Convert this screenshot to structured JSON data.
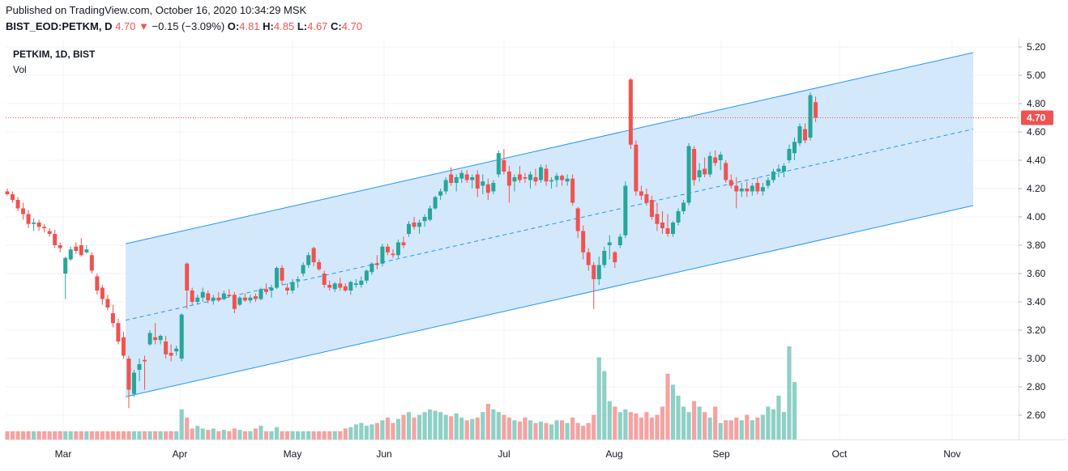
{
  "header": {
    "published": "Published on TradingView.com, October 16, 2020 10:34:29 MSK",
    "symbol_line": "BIST_EOD:PETKM, D",
    "last": "4.70",
    "arrow": "▼",
    "change": "−0.15 (−3.09%)",
    "o_label": "O:",
    "o_value": "4.81",
    "h_label": "H:",
    "h_value": "4.85",
    "l_label": "L:",
    "l_value": "4.67",
    "c_label": "C:",
    "c_value": "4.70"
  },
  "legend": {
    "symbol": "PETKIM, 1D, BIST",
    "volume": "Vol"
  },
  "chart_data": {
    "type": "candlestick",
    "price_axis": {
      "ticks": [
        "5.20",
        "5.00",
        "4.80",
        "4.60",
        "4.40",
        "4.20",
        "4.00",
        "3.80",
        "3.60",
        "3.40",
        "3.20",
        "3.00",
        "2.80",
        "2.60"
      ],
      "range": [
        2.44,
        5.24
      ]
    },
    "time_axis": {
      "ticks": [
        "Mar",
        "Apr",
        "May",
        "Jun",
        "Jul",
        "Aug",
        "Sep",
        "Oct",
        "Nov"
      ]
    },
    "last_price_label": "4.70",
    "colors": {
      "up": "#26a69a",
      "down": "#ef5350",
      "up_volume": "#8fd0c6",
      "down_volume": "#f4a3a2",
      "channel_line": "#2196f3",
      "channel_fill": "#cfe5fb"
    },
    "channel": {
      "upper": [
        [
          "Mar 19",
          3.81
        ],
        [
          "Oct 23",
          5.16
        ]
      ],
      "middle": [
        [
          "Mar 19",
          3.27
        ],
        [
          "Oct 23",
          4.62
        ]
      ],
      "lower": [
        [
          "Mar 19",
          2.73
        ],
        [
          "Oct 23",
          4.08
        ]
      ]
    },
    "candles": [
      [
        4.18,
        4.2,
        4.15,
        4.16
      ],
      [
        4.16,
        4.18,
        4.1,
        4.12
      ],
      [
        4.12,
        4.14,
        4.04,
        4.06
      ],
      [
        4.06,
        4.1,
        3.98,
        4.02
      ],
      [
        4.02,
        4.05,
        3.92,
        3.95
      ],
      [
        3.95,
        3.99,
        3.9,
        3.96
      ],
      [
        3.96,
        3.98,
        3.9,
        3.93
      ],
      [
        3.93,
        3.95,
        3.89,
        3.92
      ],
      [
        3.9,
        3.92,
        3.86,
        3.88
      ],
      [
        3.88,
        3.91,
        3.78,
        3.8
      ],
      [
        3.8,
        3.82,
        3.75,
        3.78
      ],
      [
        3.6,
        3.72,
        3.42,
        3.71
      ],
      [
        3.7,
        3.79,
        3.69,
        3.77
      ],
      [
        3.79,
        3.82,
        3.74,
        3.76
      ],
      [
        3.8,
        3.85,
        3.72,
        3.73
      ],
      [
        3.75,
        3.8,
        3.74,
        3.77
      ],
      [
        3.73,
        3.75,
        3.6,
        3.62
      ],
      [
        3.58,
        3.6,
        3.45,
        3.48
      ],
      [
        3.5,
        3.52,
        3.38,
        3.42
      ],
      [
        3.42,
        3.45,
        3.34,
        3.36
      ],
      [
        3.32,
        3.38,
        3.22,
        3.25
      ],
      [
        3.25,
        3.28,
        3.1,
        3.12
      ],
      [
        3.15,
        3.19,
        3.0,
        3.02
      ],
      [
        3.0,
        3.02,
        2.65,
        2.78
      ],
      [
        2.75,
        2.92,
        2.73,
        2.9
      ],
      [
        2.92,
        3.0,
        2.84,
        2.96
      ],
      [
        2.99,
        3.02,
        2.78,
        2.98
      ],
      [
        3.1,
        3.2,
        3.09,
        3.18
      ],
      [
        3.15,
        3.25,
        3.1,
        3.13
      ],
      [
        3.13,
        3.17,
        3.1,
        3.16
      ],
      [
        3.12,
        3.16,
        3.0,
        3.03
      ],
      [
        3.04,
        3.1,
        2.98,
        3.02
      ],
      [
        3.05,
        3.09,
        3.02,
        3.07
      ],
      [
        3.0,
        3.32,
        2.98,
        3.31
      ],
      [
        3.67,
        3.68,
        3.35,
        3.48
      ],
      [
        3.48,
        3.5,
        3.38,
        3.4
      ],
      [
        3.4,
        3.45,
        3.38,
        3.43
      ],
      [
        3.43,
        3.5,
        3.4,
        3.47
      ],
      [
        3.46,
        3.48,
        3.39,
        3.41
      ],
      [
        3.41,
        3.45,
        3.38,
        3.43
      ],
      [
        3.43,
        3.47,
        3.4,
        3.41
      ],
      [
        3.42,
        3.48,
        3.41,
        3.46
      ],
      [
        3.45,
        3.49,
        3.43,
        3.44
      ],
      [
        3.45,
        3.47,
        3.32,
        3.35
      ],
      [
        3.38,
        3.44,
        3.37,
        3.43
      ],
      [
        3.43,
        3.46,
        3.4,
        3.41
      ],
      [
        3.41,
        3.45,
        3.39,
        3.43
      ],
      [
        3.44,
        3.46,
        3.4,
        3.42
      ],
      [
        3.42,
        3.5,
        3.41,
        3.49
      ],
      [
        3.49,
        3.53,
        3.45,
        3.47
      ],
      [
        3.48,
        3.52,
        3.43,
        3.5
      ],
      [
        3.5,
        3.65,
        3.49,
        3.64
      ],
      [
        3.64,
        3.66,
        3.52,
        3.55
      ],
      [
        3.5,
        3.53,
        3.45,
        3.48
      ],
      [
        3.48,
        3.56,
        3.46,
        3.54
      ],
      [
        3.55,
        3.58,
        3.5,
        3.56
      ],
      [
        3.6,
        3.68,
        3.58,
        3.66
      ],
      [
        3.66,
        3.75,
        3.64,
        3.73
      ],
      [
        3.78,
        3.79,
        3.65,
        3.68
      ],
      [
        3.68,
        3.7,
        3.62,
        3.63
      ],
      [
        3.6,
        3.62,
        3.5,
        3.52
      ],
      [
        3.52,
        3.55,
        3.48,
        3.5
      ],
      [
        3.49,
        3.54,
        3.47,
        3.53
      ],
      [
        3.53,
        3.57,
        3.48,
        3.5
      ],
      [
        3.51,
        3.53,
        3.47,
        3.48
      ],
      [
        3.48,
        3.55,
        3.45,
        3.54
      ],
      [
        3.52,
        3.56,
        3.5,
        3.53
      ],
      [
        3.52,
        3.58,
        3.5,
        3.55
      ],
      [
        3.55,
        3.63,
        3.53,
        3.62
      ],
      [
        3.61,
        3.68,
        3.59,
        3.67
      ],
      [
        3.67,
        3.73,
        3.63,
        3.66
      ],
      [
        3.67,
        3.81,
        3.65,
        3.79
      ],
      [
        3.79,
        3.81,
        3.73,
        3.75
      ],
      [
        3.74,
        3.77,
        3.71,
        3.73
      ],
      [
        3.73,
        3.84,
        3.71,
        3.82
      ],
      [
        3.82,
        3.86,
        3.78,
        3.8
      ],
      [
        3.88,
        3.97,
        3.86,
        3.95
      ],
      [
        3.96,
        4.0,
        3.91,
        3.93
      ],
      [
        3.93,
        3.98,
        3.88,
        3.96
      ],
      [
        3.97,
        4.02,
        3.93,
        4.0
      ],
      [
        3.98,
        4.08,
        3.97,
        4.06
      ],
      [
        4.06,
        4.15,
        4.05,
        4.14
      ],
      [
        4.15,
        4.2,
        4.12,
        4.18
      ],
      [
        4.18,
        4.28,
        4.16,
        4.26
      ],
      [
        4.3,
        4.35,
        4.22,
        4.24
      ],
      [
        4.24,
        4.3,
        4.18,
        4.28
      ],
      [
        4.27,
        4.33,
        4.24,
        4.31
      ],
      [
        4.3,
        4.33,
        4.24,
        4.26
      ],
      [
        4.26,
        4.3,
        4.2,
        4.28
      ],
      [
        4.3,
        4.33,
        4.14,
        4.2
      ],
      [
        4.22,
        4.3,
        4.16,
        4.25
      ],
      [
        4.23,
        4.27,
        4.12,
        4.17
      ],
      [
        4.18,
        4.26,
        4.16,
        4.24
      ],
      [
        4.3,
        4.47,
        4.28,
        4.45
      ],
      [
        4.4,
        4.48,
        4.3,
        4.32
      ],
      [
        4.32,
        4.36,
        4.1,
        4.22
      ],
      [
        4.25,
        4.3,
        4.18,
        4.28
      ],
      [
        4.3,
        4.36,
        4.24,
        4.26
      ],
      [
        4.28,
        4.31,
        4.24,
        4.27
      ],
      [
        4.26,
        4.32,
        4.2,
        4.3
      ],
      [
        4.28,
        4.34,
        4.22,
        4.25
      ],
      [
        4.26,
        4.37,
        4.24,
        4.35
      ],
      [
        4.34,
        4.37,
        4.22,
        4.25
      ],
      [
        4.25,
        4.28,
        4.2,
        4.26
      ],
      [
        4.26,
        4.31,
        4.21,
        4.29
      ],
      [
        4.29,
        4.3,
        4.22,
        4.26
      ],
      [
        4.25,
        4.3,
        4.22,
        4.27
      ],
      [
        4.27,
        4.3,
        4.08,
        4.1
      ],
      [
        4.06,
        4.07,
        3.85,
        3.9
      ],
      [
        3.9,
        3.94,
        3.7,
        3.75
      ],
      [
        3.75,
        3.78,
        3.62,
        3.66
      ],
      [
        3.66,
        3.68,
        3.35,
        3.56
      ],
      [
        3.56,
        3.72,
        3.52,
        3.66
      ],
      [
        3.66,
        3.79,
        3.64,
        3.76
      ],
      [
        3.8,
        3.87,
        3.7,
        3.82
      ],
      [
        3.75,
        3.76,
        3.64,
        3.68
      ],
      [
        3.8,
        3.88,
        3.78,
        3.86
      ],
      [
        3.87,
        4.25,
        3.85,
        4.22
      ],
      [
        4.97,
        4.98,
        4.48,
        4.51
      ],
      [
        4.51,
        4.54,
        4.15,
        4.18
      ],
      [
        4.18,
        4.22,
        4.12,
        4.15
      ],
      [
        4.16,
        4.2,
        4.08,
        4.1
      ],
      [
        4.12,
        4.15,
        3.98,
        4.0
      ],
      [
        4.02,
        4.1,
        3.9,
        3.95
      ],
      [
        3.96,
        4.04,
        3.88,
        3.92
      ],
      [
        3.92,
        4.02,
        3.86,
        3.88
      ],
      [
        3.88,
        3.97,
        3.86,
        3.96
      ],
      [
        3.96,
        4.06,
        3.94,
        4.04
      ],
      [
        4.04,
        4.12,
        4.02,
        4.1
      ],
      [
        4.1,
        4.52,
        4.08,
        4.5
      ],
      [
        4.48,
        4.5,
        4.22,
        4.26
      ],
      [
        4.28,
        4.38,
        4.25,
        4.33
      ],
      [
        4.34,
        4.42,
        4.28,
        4.3
      ],
      [
        4.3,
        4.46,
        4.28,
        4.43
      ],
      [
        4.42,
        4.47,
        4.36,
        4.38
      ],
      [
        4.4,
        4.46,
        4.33,
        4.44
      ],
      [
        4.38,
        4.4,
        4.24,
        4.26
      ],
      [
        4.26,
        4.3,
        4.2,
        4.22
      ],
      [
        4.22,
        4.28,
        4.06,
        4.18
      ],
      [
        4.18,
        4.24,
        4.14,
        4.2
      ],
      [
        4.2,
        4.25,
        4.14,
        4.18
      ],
      [
        4.18,
        4.24,
        4.15,
        4.22
      ],
      [
        4.24,
        4.28,
        4.16,
        4.18
      ],
      [
        4.18,
        4.24,
        4.15,
        4.21
      ],
      [
        4.22,
        4.28,
        4.2,
        4.26
      ],
      [
        4.26,
        4.34,
        4.24,
        4.32
      ],
      [
        4.32,
        4.37,
        4.28,
        4.34
      ],
      [
        4.32,
        4.38,
        4.28,
        4.36
      ],
      [
        4.4,
        4.51,
        4.38,
        4.48
      ],
      [
        4.45,
        4.56,
        4.4,
        4.53
      ],
      [
        4.52,
        4.66,
        4.5,
        4.64
      ],
      [
        4.62,
        4.66,
        4.52,
        4.54
      ],
      [
        4.56,
        4.88,
        4.54,
        4.86
      ],
      [
        4.81,
        4.85,
        4.67,
        4.7
      ]
    ],
    "volumes": [
      30,
      30,
      30,
      30,
      30,
      30,
      30,
      30,
      30,
      30,
      30,
      30,
      30,
      30,
      30,
      30,
      30,
      30,
      30,
      30,
      30,
      30,
      30,
      30,
      30,
      30,
      30,
      30,
      30,
      30,
      30,
      30,
      30,
      110,
      80,
      40,
      50,
      40,
      35,
      40,
      30,
      35,
      30,
      40,
      35,
      30,
      30,
      40,
      50,
      30,
      30,
      45,
      30,
      30,
      30,
      30,
      30,
      30,
      30,
      30,
      30,
      30,
      30,
      30,
      40,
      45,
      55,
      60,
      50,
      55,
      60,
      70,
      80,
      60,
      75,
      90,
      100,
      80,
      90,
      100,
      110,
      105,
      100,
      90,
      85,
      95,
      80,
      70,
      75,
      80,
      100,
      130,
      110,
      100,
      90,
      80,
      70,
      65,
      80,
      70,
      60,
      65,
      60,
      55,
      70,
      70,
      60,
      80,
      60,
      50,
      60,
      90,
      300,
      250,
      140,
      120,
      100,
      110,
      100,
      95,
      80,
      100,
      80,
      90,
      120,
      240,
      200,
      160,
      120,
      100,
      140,
      120,
      100,
      80,
      120,
      60,
      70,
      70,
      80,
      70,
      90,
      70,
      80,
      90,
      120,
      110,
      160,
      100,
      340,
      210
    ]
  }
}
